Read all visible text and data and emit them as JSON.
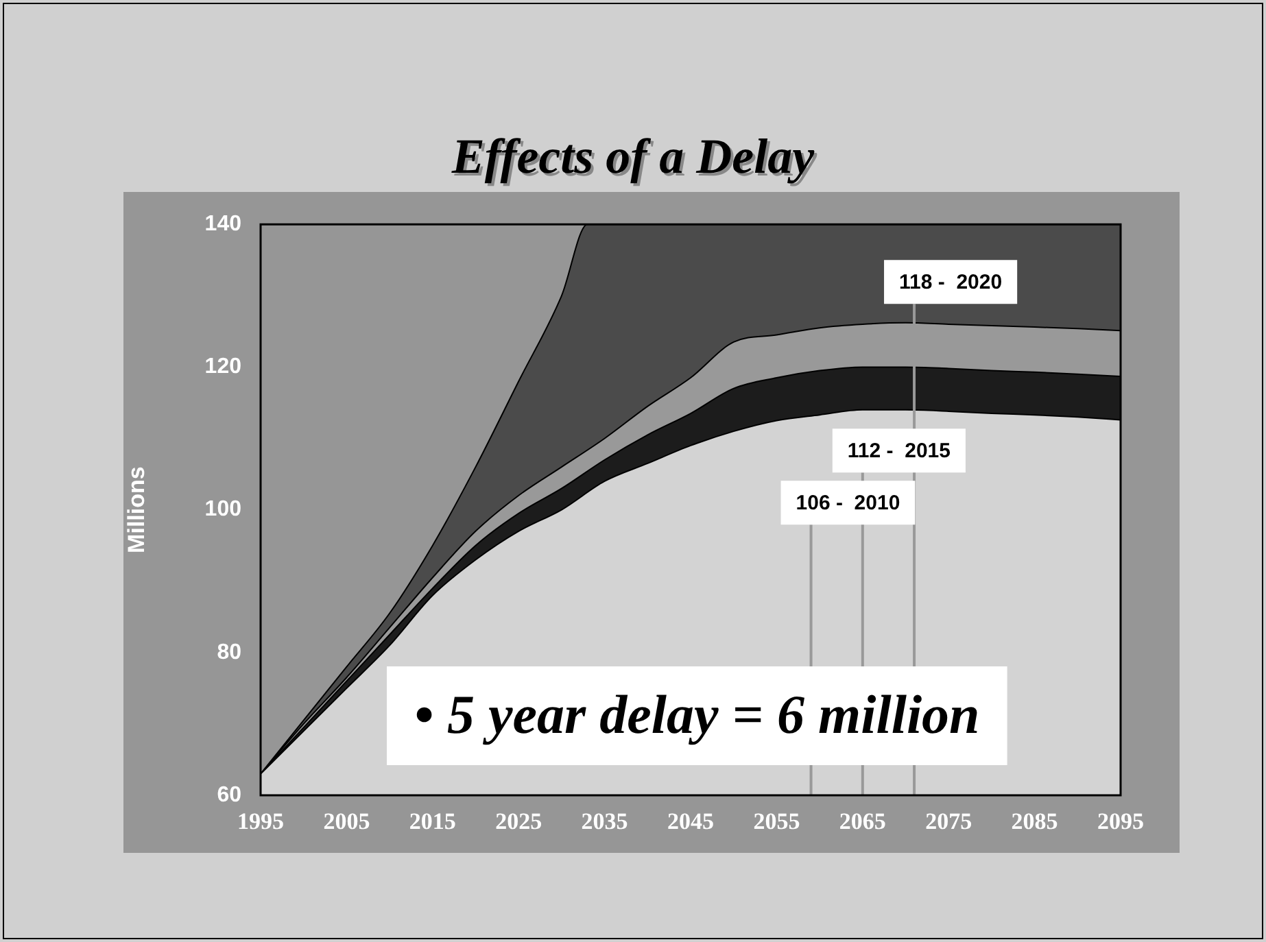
{
  "chart_data": {
    "type": "area",
    "title": "Effects of a Delay",
    "ylabel": "Millions",
    "xlim": [
      1995,
      2095
    ],
    "xticks": [
      1995,
      2005,
      2015,
      2025,
      2035,
      2045,
      2055,
      2065,
      2075,
      2085,
      2095
    ],
    "ylim": [
      60,
      140
    ],
    "yticks": [
      60,
      80,
      100,
      120,
      140
    ],
    "x": [
      1995,
      2000,
      2005,
      2010,
      2015,
      2020,
      2025,
      2030,
      2035,
      2040,
      2045,
      2050,
      2055,
      2060,
      2065,
      2070,
      2075,
      2080,
      2085,
      2090,
      2095
    ],
    "series": [
      {
        "color": "#d3d3d3",
        "values": [
          63,
          69,
          75,
          81,
          88,
          93,
          97,
          100,
          104,
          106.5,
          109,
          111,
          112.5,
          113.3,
          114,
          114,
          113.8,
          113.5,
          113.3,
          113,
          112.6
        ]
      },
      {
        "color": "#1c1c1c",
        "values": [
          63,
          69.5,
          76,
          82.5,
          89,
          95,
          99.5,
          103,
          107,
          110.5,
          113.5,
          117,
          118.5,
          119.5,
          120,
          120,
          119.8,
          119.5,
          119.3,
          119,
          118.7
        ]
      },
      {
        "color": "#999999",
        "values": [
          63,
          70,
          76.5,
          83.5,
          90.5,
          97,
          102,
          106,
          110,
          114.5,
          118.5,
          123.5,
          124.5,
          125.5,
          126,
          126.2,
          126,
          125.8,
          125.6,
          125.4,
          125.1
        ]
      },
      {
        "color": "#4b4b4b",
        "x": [
          1995,
          2000,
          2005,
          2010,
          2015,
          2020,
          2025,
          2030,
          2033,
          2095
        ],
        "values": [
          63,
          70.5,
          78,
          85.5,
          95,
          106,
          118,
          130,
          140,
          140
        ]
      }
    ],
    "ref_lines": [
      {
        "axis": "x",
        "value": 2059,
        "color": "#999999"
      },
      {
        "axis": "x",
        "value": 2065,
        "color": "#999999"
      },
      {
        "axis": "x",
        "value": 2071,
        "color": "#999999"
      }
    ],
    "annotations": [
      "106 -  2010",
      "112 -  2015",
      "118 -  2020",
      "• 5 year delay = 6 million"
    ]
  }
}
